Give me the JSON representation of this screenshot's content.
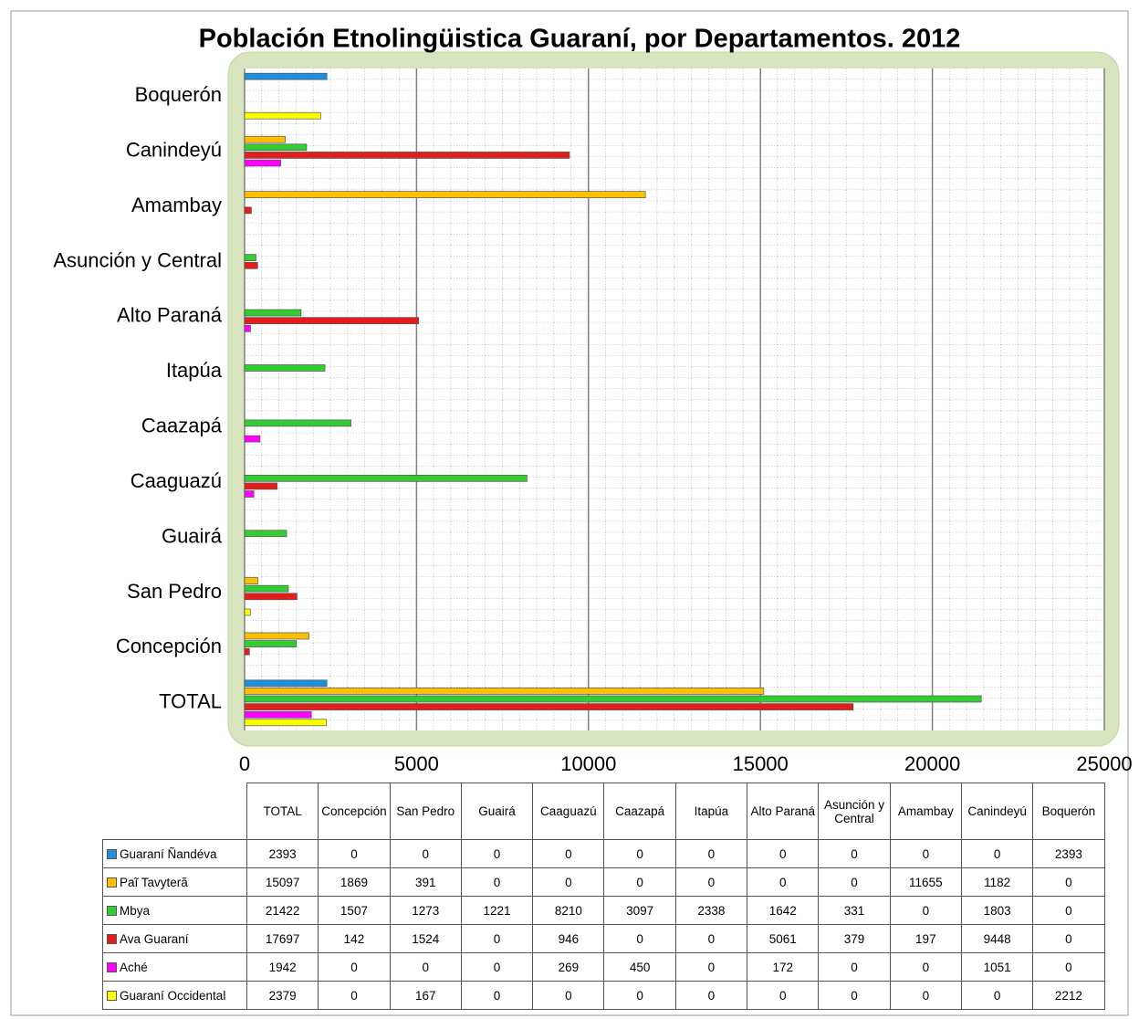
{
  "chart_data": {
    "type": "hbar",
    "title": "Población Etnolingüistica Guaraní, por Departamentos. 2012",
    "categories": [
      "TOTAL",
      "Concepción",
      "San Pedro",
      "Guairá",
      "Caaguazú",
      "Caazapá",
      "Itapúa",
      "Alto Paraná",
      "Asunción y Central",
      "Amambay",
      "Canindeyú",
      "Boquerón"
    ],
    "series": [
      {
        "name": "Guaraní Ñandéva",
        "color": "#1e8fd8",
        "values": [
          2393,
          0,
          0,
          0,
          0,
          0,
          0,
          0,
          0,
          0,
          0,
          2393
        ]
      },
      {
        "name": "Paĩ Tavyterã",
        "color": "#ffc000",
        "values": [
          15097,
          1869,
          391,
          0,
          0,
          0,
          0,
          0,
          0,
          11655,
          1182,
          0
        ]
      },
      {
        "name": "Mbya",
        "color": "#33cc33",
        "values": [
          21422,
          1507,
          1273,
          1221,
          8210,
          3097,
          2338,
          1642,
          331,
          0,
          1803,
          0
        ]
      },
      {
        "name": "Ava Guaraní",
        "color": "#e31c1c",
        "values": [
          17697,
          142,
          1524,
          0,
          946,
          0,
          0,
          5061,
          379,
          197,
          9448,
          0
        ]
      },
      {
        "name": "Aché",
        "color": "#ff00ff",
        "values": [
          1942,
          0,
          0,
          0,
          269,
          450,
          0,
          172,
          0,
          0,
          1051,
          0
        ]
      },
      {
        "name": "Guaraní Occidental",
        "color": "#ffff00",
        "values": [
          2379,
          0,
          167,
          0,
          0,
          0,
          0,
          0,
          0,
          0,
          0,
          2212
        ]
      }
    ],
    "xlim": [
      0,
      25000
    ],
    "xticks": [
      0,
      5000,
      10000,
      15000,
      20000,
      25000
    ],
    "grid": true
  }
}
